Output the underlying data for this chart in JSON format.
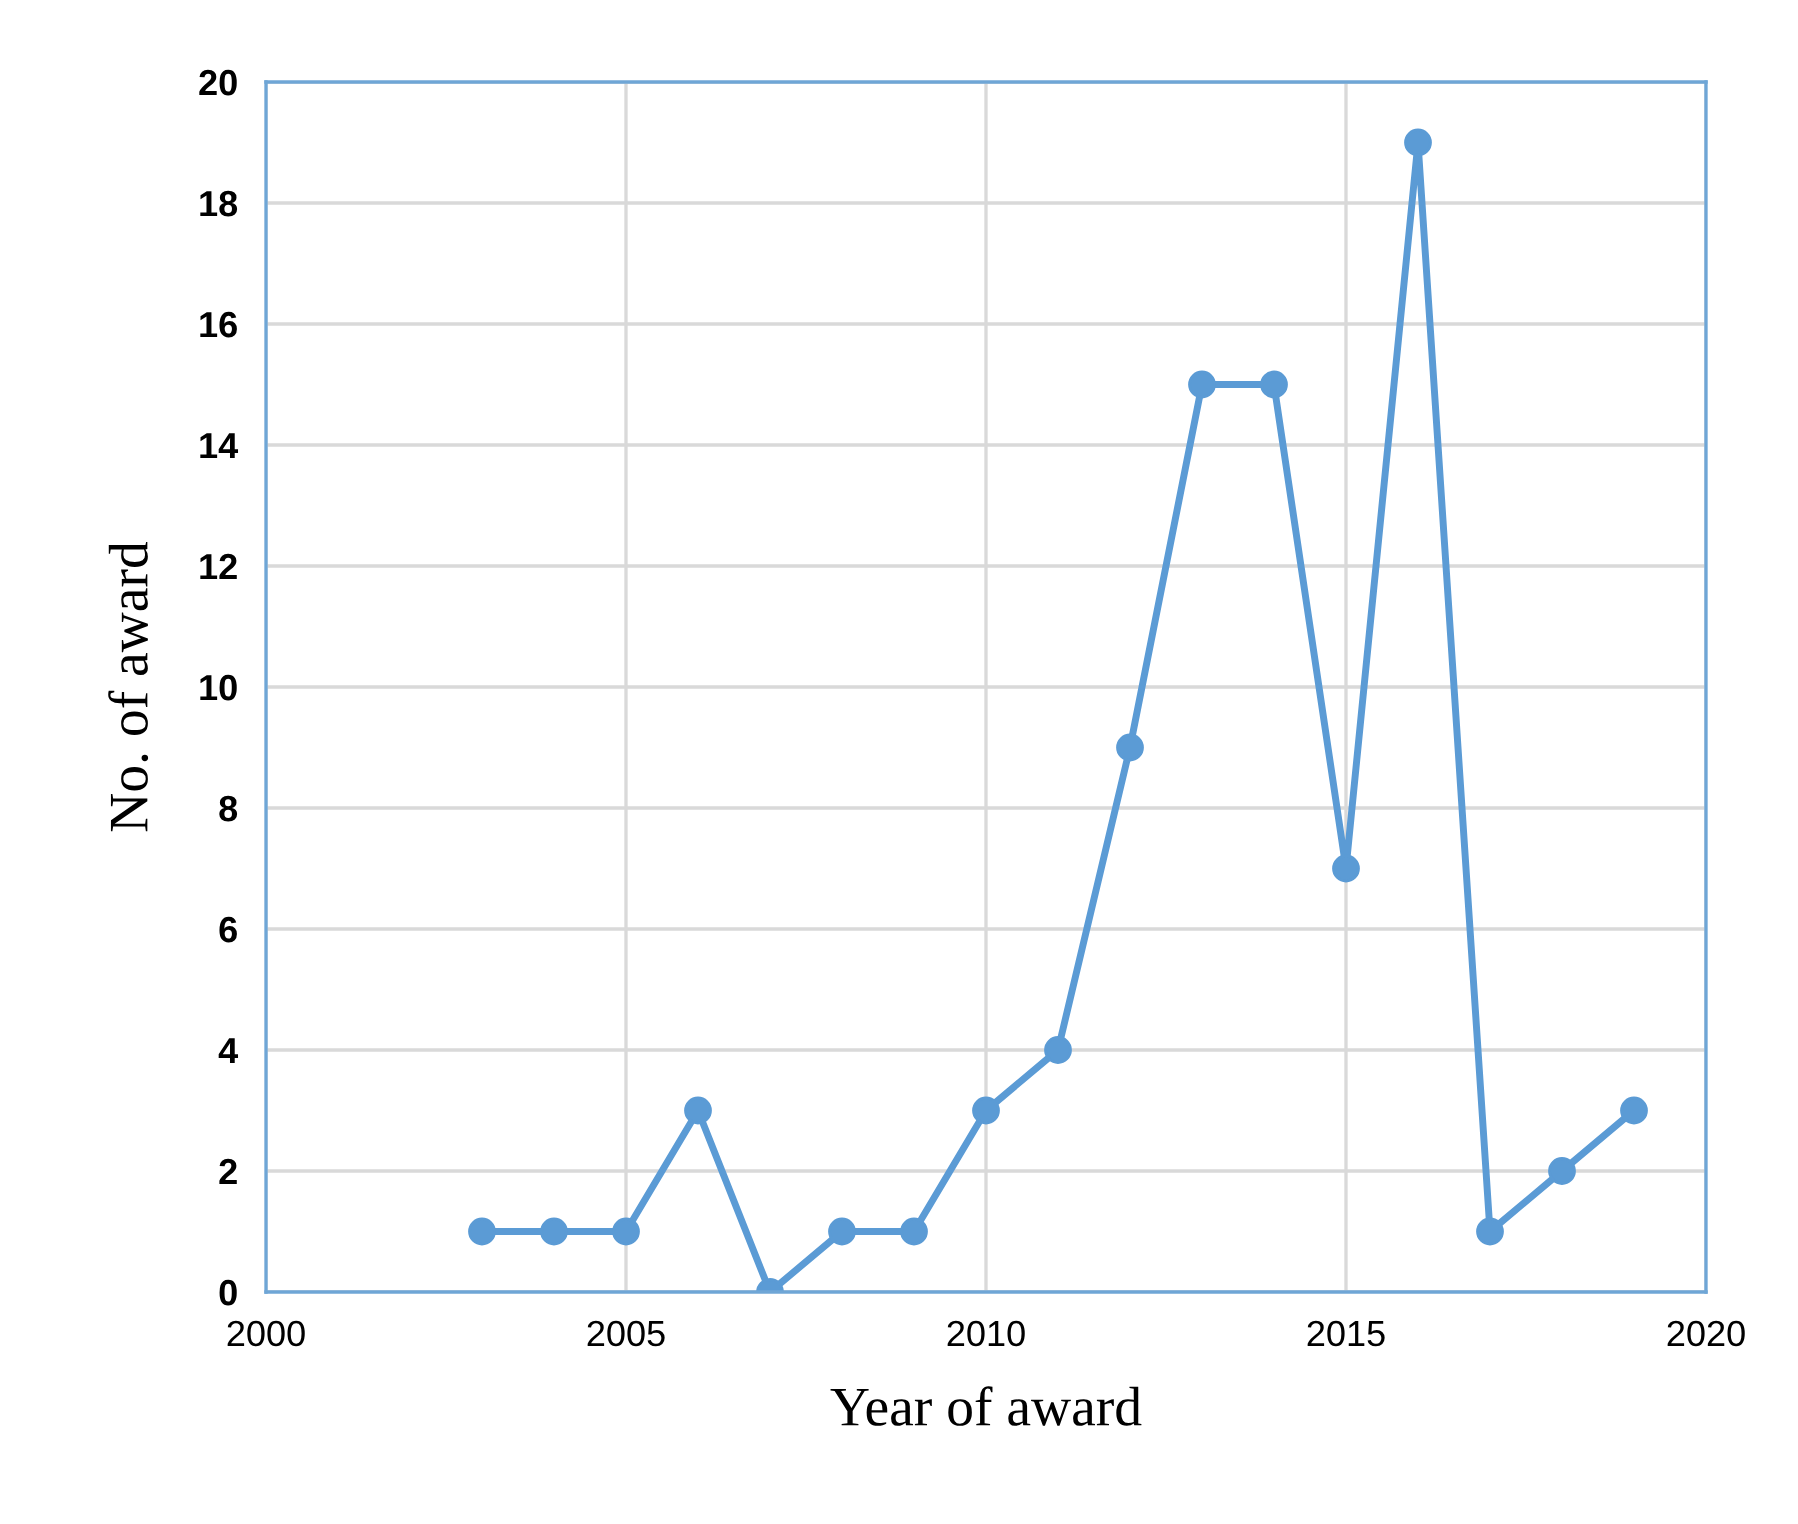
{
  "chart_data": {
    "type": "line",
    "xlabel": "Year of award",
    "ylabel": "No. of award",
    "x": [
      2003,
      2004,
      2005,
      2006,
      2007,
      2008,
      2009,
      2010,
      2011,
      2012,
      2013,
      2014,
      2015,
      2016,
      2017,
      2018,
      2019
    ],
    "series": [
      {
        "color": "#5b9bd5",
        "values": [
          1,
          1,
          1,
          3,
          0,
          1,
          1,
          3,
          4,
          9,
          15,
          15,
          7,
          19,
          1,
          2,
          3
        ]
      }
    ],
    "xlim": [
      2000,
      2020
    ],
    "xticks": [
      2000,
      2005,
      2010,
      2015,
      2020
    ],
    "ylim": [
      0,
      20
    ],
    "yticks": [
      0,
      2,
      4,
      6,
      8,
      10,
      12,
      14,
      16,
      18,
      20
    ],
    "grid": true,
    "marker": "circle",
    "line_style": "solid",
    "legend": false
  }
}
